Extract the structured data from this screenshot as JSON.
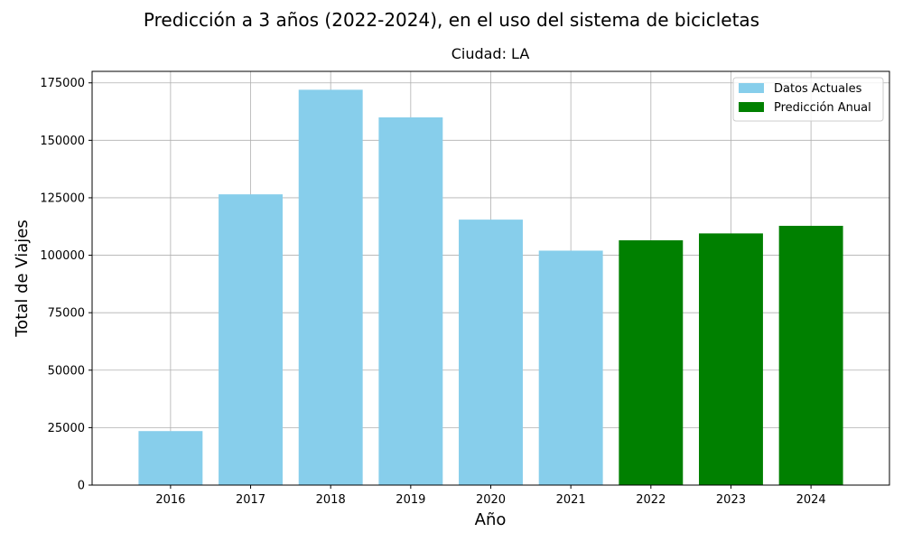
{
  "chart_data": {
    "type": "bar",
    "title": "Predicción a 3 años (2022-2024), en el uso del sistema de bicicletas",
    "subtitle": "Ciudad: LA",
    "xlabel": "Año",
    "ylabel": "Total de Viajes",
    "ylim": [
      0,
      180000
    ],
    "yticks": [
      0,
      25000,
      50000,
      75000,
      100000,
      125000,
      150000,
      175000
    ],
    "grid": true,
    "legend_position": "top-right",
    "series": [
      {
        "name": "Datos Actuales",
        "color": "#87ceeb",
        "x": [
          "2016",
          "2017",
          "2018",
          "2019",
          "2020",
          "2021"
        ],
        "values": [
          23500,
          126500,
          172000,
          160000,
          115500,
          102000
        ]
      },
      {
        "name": "Predicción Anual",
        "color": "#008000",
        "x": [
          "2022",
          "2023",
          "2024"
        ],
        "values": [
          106500,
          109500,
          112800
        ]
      }
    ]
  }
}
